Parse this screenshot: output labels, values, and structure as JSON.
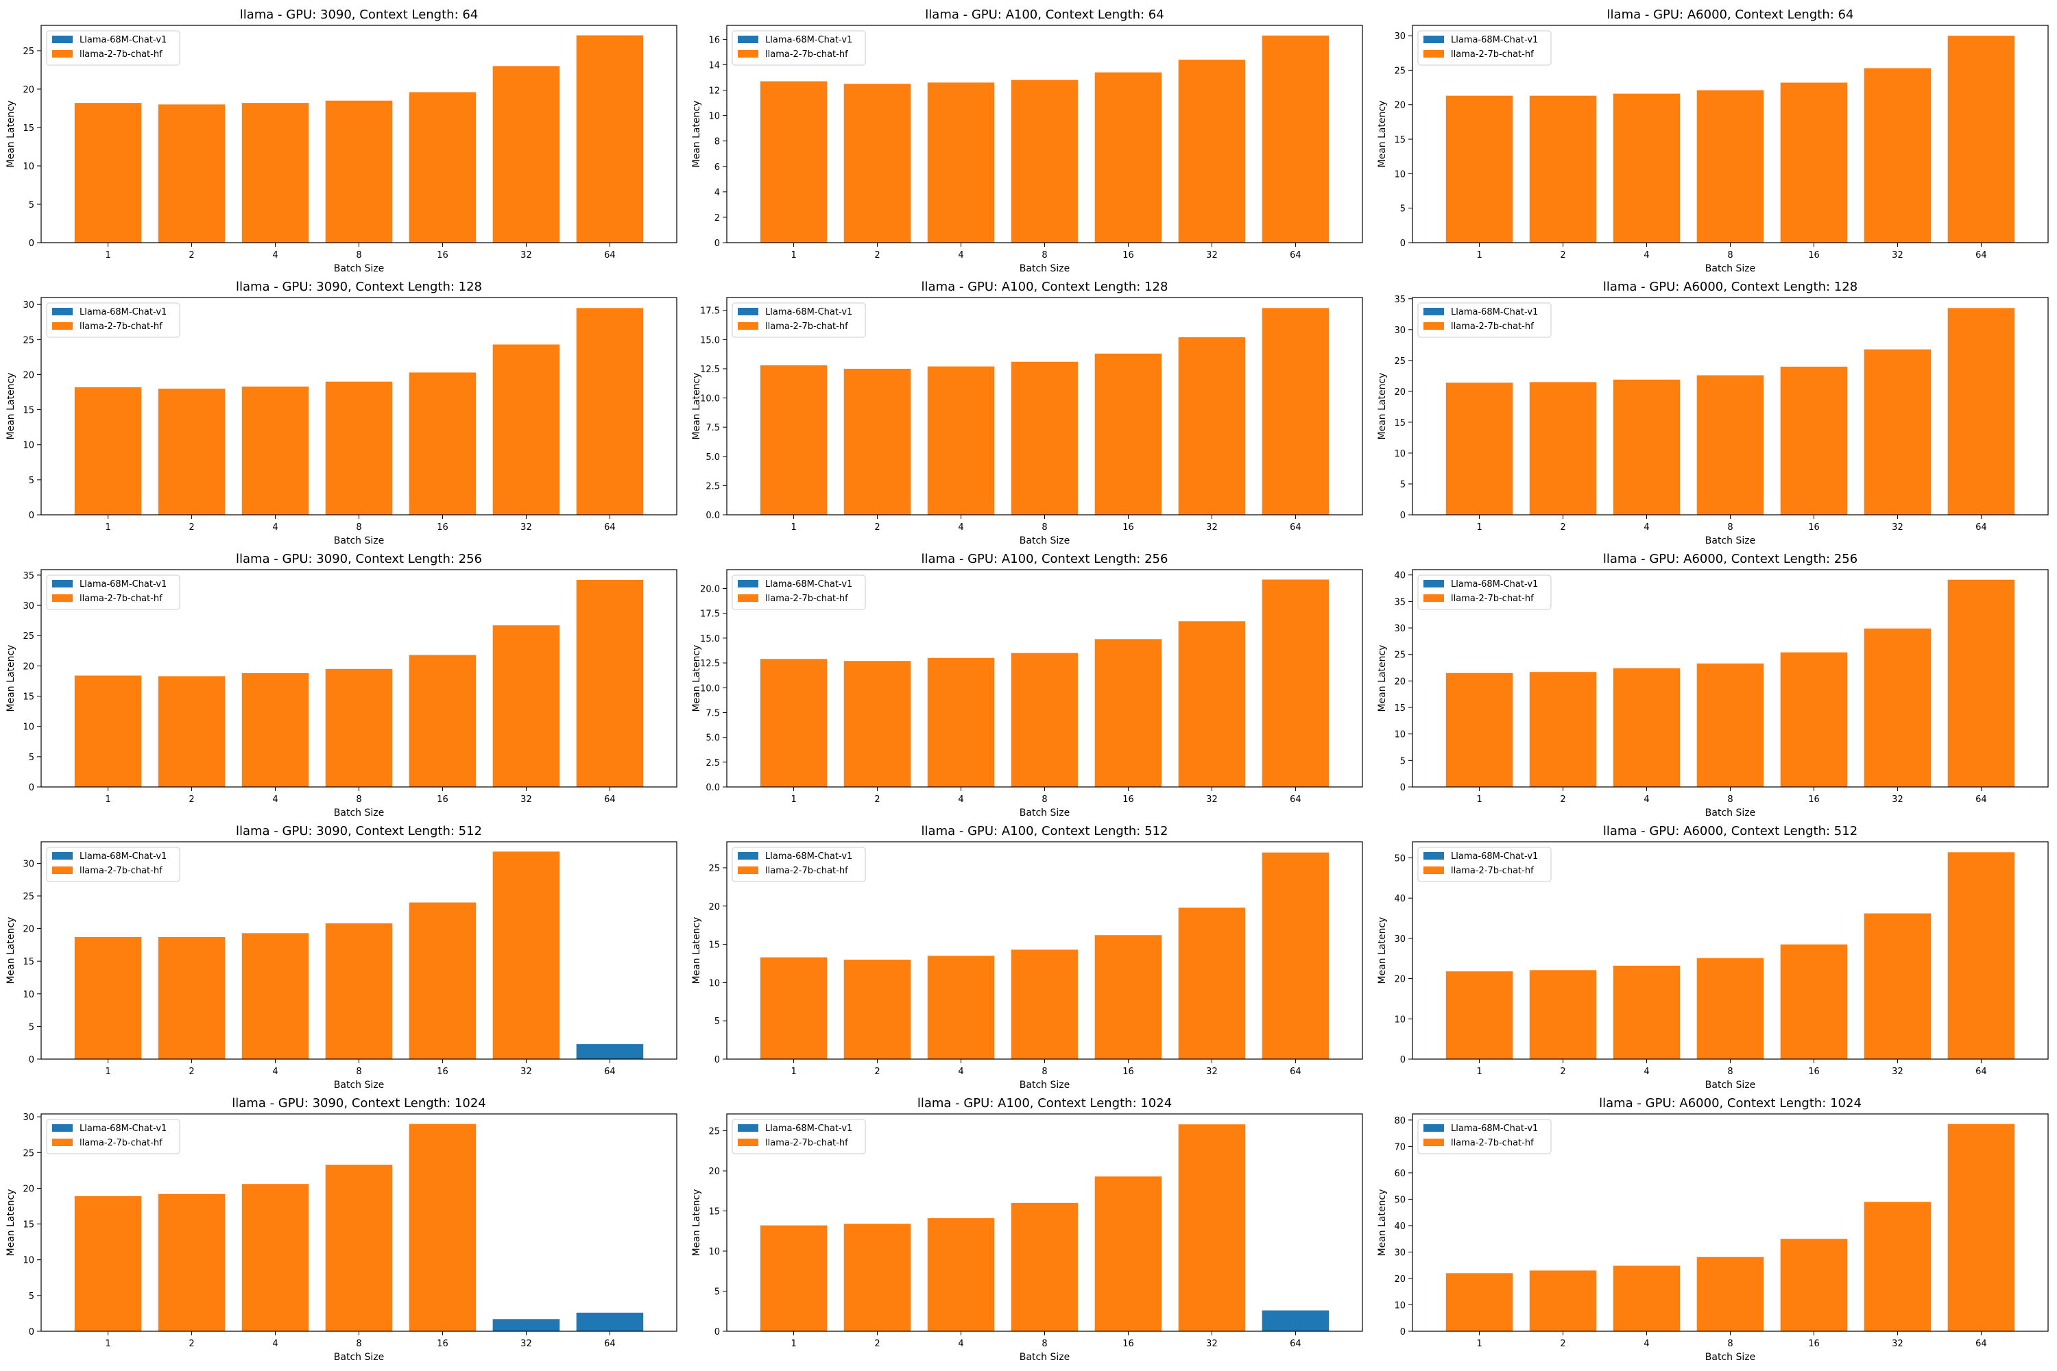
{
  "figure": {
    "categories": [
      "1",
      "2",
      "4",
      "8",
      "16",
      "32",
      "64"
    ],
    "xlabel": "Batch Size",
    "ylabel": "Mean Latency",
    "legend": {
      "placement": "top-left",
      "entries": [
        "Llama-68M-Chat-v1",
        "llama-2-7b-chat-hf"
      ]
    },
    "colors": {
      "Llama-68M-Chat-v1": "#1f77b4",
      "llama-2-7b-chat-hf": "#ff7f0e"
    }
  },
  "chart_data": [
    {
      "type": "bar",
      "title": "llama - GPU: 3090, Context Length: 64",
      "categories": [
        "1",
        "2",
        "4",
        "8",
        "16",
        "32",
        "64"
      ],
      "xlabel": "Batch Size",
      "ylabel": "Mean Latency",
      "ylim": [
        0,
        28.3
      ],
      "yticks": [
        0,
        5,
        10,
        15,
        20,
        25
      ],
      "series": [
        {
          "name": "Llama-68M-Chat-v1",
          "values": [
            null,
            null,
            null,
            null,
            null,
            null,
            null
          ]
        },
        {
          "name": "llama-2-7b-chat-hf",
          "values": [
            18.2,
            18.0,
            18.2,
            18.5,
            19.6,
            23.0,
            27.0
          ]
        }
      ]
    },
    {
      "type": "bar",
      "title": "llama - GPU: A100, Context Length: 64",
      "categories": [
        "1",
        "2",
        "4",
        "8",
        "16",
        "32",
        "64"
      ],
      "xlabel": "Batch Size",
      "ylabel": "Mean Latency",
      "ylim": [
        0,
        17.1
      ],
      "yticks": [
        0,
        2,
        4,
        6,
        8,
        10,
        12,
        14,
        16
      ],
      "series": [
        {
          "name": "Llama-68M-Chat-v1",
          "values": [
            null,
            null,
            null,
            null,
            null,
            null,
            null
          ]
        },
        {
          "name": "llama-2-7b-chat-hf",
          "values": [
            12.7,
            12.5,
            12.6,
            12.8,
            13.4,
            14.4,
            16.3
          ]
        }
      ]
    },
    {
      "type": "bar",
      "title": "llama - GPU: A6000, Context Length: 64",
      "categories": [
        "1",
        "2",
        "4",
        "8",
        "16",
        "32",
        "64"
      ],
      "xlabel": "Batch Size",
      "ylabel": "Mean Latency",
      "ylim": [
        0,
        31.5
      ],
      "yticks": [
        0,
        5,
        10,
        15,
        20,
        25,
        30
      ],
      "series": [
        {
          "name": "Llama-68M-Chat-v1",
          "values": [
            null,
            null,
            null,
            null,
            null,
            null,
            null
          ]
        },
        {
          "name": "llama-2-7b-chat-hf",
          "values": [
            21.3,
            21.3,
            21.6,
            22.1,
            23.2,
            25.3,
            30.0
          ]
        }
      ]
    },
    {
      "type": "bar",
      "title": "llama - GPU: 3090, Context Length: 128",
      "categories": [
        "1",
        "2",
        "4",
        "8",
        "16",
        "32",
        "64"
      ],
      "xlabel": "Batch Size",
      "ylabel": "Mean Latency",
      "ylim": [
        0,
        31.0
      ],
      "yticks": [
        0,
        5,
        10,
        15,
        20,
        25,
        30
      ],
      "series": [
        {
          "name": "Llama-68M-Chat-v1",
          "values": [
            null,
            null,
            null,
            null,
            null,
            null,
            null
          ]
        },
        {
          "name": "llama-2-7b-chat-hf",
          "values": [
            18.2,
            18.0,
            18.3,
            19.0,
            20.3,
            24.3,
            29.5
          ]
        }
      ]
    },
    {
      "type": "bar",
      "title": "llama - GPU: A100, Context Length: 128",
      "categories": [
        "1",
        "2",
        "4",
        "8",
        "16",
        "32",
        "64"
      ],
      "xlabel": "Batch Size",
      "ylabel": "Mean Latency",
      "ylim": [
        0,
        18.6
      ],
      "yticks": [
        0,
        2.5,
        5,
        7.5,
        10,
        12.5,
        15,
        17.5
      ],
      "ytick_labels": [
        "0.0",
        "2.5",
        "5.0",
        "7.5",
        "10.0",
        "12.5",
        "15.0",
        "17.5"
      ],
      "series": [
        {
          "name": "Llama-68M-Chat-v1",
          "values": [
            null,
            null,
            null,
            null,
            null,
            null,
            null
          ]
        },
        {
          "name": "llama-2-7b-chat-hf",
          "values": [
            12.8,
            12.5,
            12.7,
            13.1,
            13.8,
            15.2,
            17.7
          ]
        }
      ]
    },
    {
      "type": "bar",
      "title": "llama - GPU: A6000, Context Length: 128",
      "categories": [
        "1",
        "2",
        "4",
        "8",
        "16",
        "32",
        "64"
      ],
      "xlabel": "Batch Size",
      "ylabel": "Mean Latency",
      "ylim": [
        0,
        35.2
      ],
      "yticks": [
        0,
        5,
        10,
        15,
        20,
        25,
        30,
        35
      ],
      "series": [
        {
          "name": "Llama-68M-Chat-v1",
          "values": [
            null,
            null,
            null,
            null,
            null,
            null,
            null
          ]
        },
        {
          "name": "llama-2-7b-chat-hf",
          "values": [
            21.4,
            21.5,
            21.9,
            22.6,
            24.0,
            26.8,
            33.5
          ]
        }
      ]
    },
    {
      "type": "bar",
      "title": "llama - GPU: 3090, Context Length: 256",
      "categories": [
        "1",
        "2",
        "4",
        "8",
        "16",
        "32",
        "64"
      ],
      "xlabel": "Batch Size",
      "ylabel": "Mean Latency",
      "ylim": [
        0,
        35.9
      ],
      "yticks": [
        0,
        5,
        10,
        15,
        20,
        25,
        30,
        35
      ],
      "series": [
        {
          "name": "Llama-68M-Chat-v1",
          "values": [
            null,
            null,
            null,
            null,
            null,
            null,
            null
          ]
        },
        {
          "name": "llama-2-7b-chat-hf",
          "values": [
            18.4,
            18.3,
            18.8,
            19.5,
            21.8,
            26.7,
            34.2
          ]
        }
      ]
    },
    {
      "type": "bar",
      "title": "llama - GPU: A100, Context Length: 256",
      "categories": [
        "1",
        "2",
        "4",
        "8",
        "16",
        "32",
        "64"
      ],
      "xlabel": "Batch Size",
      "ylabel": "Mean Latency",
      "ylim": [
        0,
        21.9
      ],
      "yticks": [
        0,
        2.5,
        5,
        7.5,
        10,
        12.5,
        15,
        17.5,
        20
      ],
      "ytick_labels": [
        "0.0",
        "2.5",
        "5.0",
        "7.5",
        "10.0",
        "12.5",
        "15.0",
        "17.5",
        "20.0"
      ],
      "series": [
        {
          "name": "Llama-68M-Chat-v1",
          "values": [
            null,
            null,
            null,
            null,
            null,
            null,
            null
          ]
        },
        {
          "name": "llama-2-7b-chat-hf",
          "values": [
            12.9,
            12.7,
            13.0,
            13.5,
            14.9,
            16.7,
            20.9
          ]
        }
      ]
    },
    {
      "type": "bar",
      "title": "llama - GPU: A6000, Context Length: 256",
      "categories": [
        "1",
        "2",
        "4",
        "8",
        "16",
        "32",
        "64"
      ],
      "xlabel": "Batch Size",
      "ylabel": "Mean Latency",
      "ylim": [
        0,
        41.0
      ],
      "yticks": [
        0,
        5,
        10,
        15,
        20,
        25,
        30,
        35,
        40
      ],
      "series": [
        {
          "name": "Llama-68M-Chat-v1",
          "values": [
            null,
            null,
            null,
            null,
            null,
            null,
            null
          ]
        },
        {
          "name": "llama-2-7b-chat-hf",
          "values": [
            21.5,
            21.7,
            22.4,
            23.3,
            25.4,
            29.9,
            39.1
          ]
        }
      ]
    },
    {
      "type": "bar",
      "title": "llama - GPU: 3090, Context Length: 512",
      "categories": [
        "1",
        "2",
        "4",
        "8",
        "16",
        "32",
        "64"
      ],
      "xlabel": "Batch Size",
      "ylabel": "Mean Latency",
      "ylim": [
        0,
        33.3
      ],
      "yticks": [
        0,
        5,
        10,
        15,
        20,
        25,
        30
      ],
      "series": [
        {
          "name": "Llama-68M-Chat-v1",
          "values": [
            null,
            null,
            null,
            null,
            null,
            null,
            2.3
          ]
        },
        {
          "name": "llama-2-7b-chat-hf",
          "values": [
            18.7,
            18.7,
            19.3,
            20.8,
            24.0,
            31.8,
            null
          ]
        }
      ]
    },
    {
      "type": "bar",
      "title": "llama - GPU: A100, Context Length: 512",
      "categories": [
        "1",
        "2",
        "4",
        "8",
        "16",
        "32",
        "64"
      ],
      "xlabel": "Batch Size",
      "ylabel": "Mean Latency",
      "ylim": [
        0,
        28.4
      ],
      "yticks": [
        0,
        5,
        10,
        15,
        20,
        25
      ],
      "series": [
        {
          "name": "Llama-68M-Chat-v1",
          "values": [
            null,
            null,
            null,
            null,
            null,
            null,
            null
          ]
        },
        {
          "name": "llama-2-7b-chat-hf",
          "values": [
            13.3,
            13.0,
            13.5,
            14.3,
            16.2,
            19.8,
            27.0
          ]
        }
      ]
    },
    {
      "type": "bar",
      "title": "llama - GPU: A6000, Context Length: 512",
      "categories": [
        "1",
        "2",
        "4",
        "8",
        "16",
        "32",
        "64"
      ],
      "xlabel": "Batch Size",
      "ylabel": "Mean Latency",
      "ylim": [
        0,
        54.0
      ],
      "yticks": [
        0,
        10,
        20,
        30,
        40,
        50
      ],
      "series": [
        {
          "name": "Llama-68M-Chat-v1",
          "values": [
            null,
            null,
            null,
            null,
            null,
            null,
            null
          ]
        },
        {
          "name": "llama-2-7b-chat-hf",
          "values": [
            21.8,
            22.1,
            23.2,
            25.1,
            28.5,
            36.2,
            51.4
          ]
        }
      ]
    },
    {
      "type": "bar",
      "title": "llama - GPU: 3090, Context Length: 1024",
      "categories": [
        "1",
        "2",
        "4",
        "8",
        "16",
        "32",
        "64"
      ],
      "xlabel": "Batch Size",
      "ylabel": "Mean Latency",
      "ylim": [
        0,
        30.4
      ],
      "yticks": [
        0,
        5,
        10,
        15,
        20,
        25,
        30
      ],
      "series": [
        {
          "name": "Llama-68M-Chat-v1",
          "values": [
            null,
            null,
            null,
            null,
            null,
            1.7,
            2.6
          ]
        },
        {
          "name": "llama-2-7b-chat-hf",
          "values": [
            18.9,
            19.2,
            20.6,
            23.3,
            29.0,
            null,
            null
          ]
        }
      ]
    },
    {
      "type": "bar",
      "title": "llama - GPU: A100, Context Length: 1024",
      "categories": [
        "1",
        "2",
        "4",
        "8",
        "16",
        "32",
        "64"
      ],
      "xlabel": "Batch Size",
      "ylabel": "Mean Latency",
      "ylim": [
        0,
        27.1
      ],
      "yticks": [
        0,
        5,
        10,
        15,
        20,
        25
      ],
      "series": [
        {
          "name": "Llama-68M-Chat-v1",
          "values": [
            null,
            null,
            null,
            null,
            null,
            null,
            2.6
          ]
        },
        {
          "name": "llama-2-7b-chat-hf",
          "values": [
            13.2,
            13.4,
            14.1,
            16.0,
            19.3,
            25.8,
            null
          ]
        }
      ]
    },
    {
      "type": "bar",
      "title": "llama - GPU: A6000, Context Length: 1024",
      "categories": [
        "1",
        "2",
        "4",
        "8",
        "16",
        "32",
        "64"
      ],
      "xlabel": "Batch Size",
      "ylabel": "Mean Latency",
      "ylim": [
        0,
        82.3
      ],
      "yticks": [
        0,
        10,
        20,
        30,
        40,
        50,
        60,
        70,
        80
      ],
      "series": [
        {
          "name": "Llama-68M-Chat-v1",
          "values": [
            null,
            null,
            null,
            null,
            null,
            null,
            null
          ]
        },
        {
          "name": "llama-2-7b-chat-hf",
          "values": [
            22.0,
            23.0,
            24.8,
            28.1,
            35.0,
            49.0,
            78.5
          ]
        }
      ]
    }
  ]
}
